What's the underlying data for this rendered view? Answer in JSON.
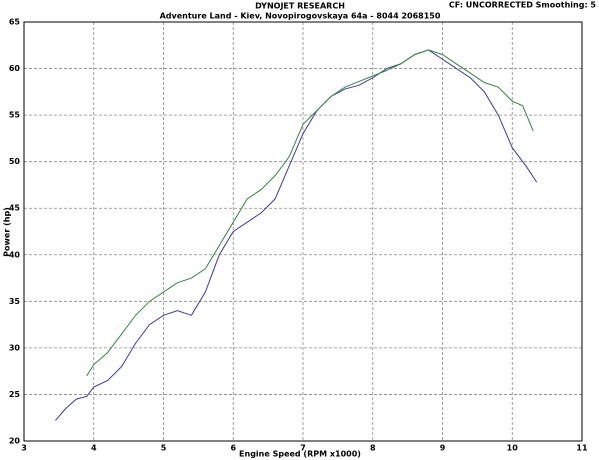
{
  "chart_data": {
    "type": "line",
    "title": "DYNOJET RESEARCH",
    "subtitle": "Adventure Land - Kiev, Novopirogovskaya 64a - 8044 2068150",
    "annotation": "CF: UNCORRECTED  Smoothing: 5",
    "xlabel": "Engine Speed (RPM x1000)",
    "ylabel": "Power (hp)",
    "xlim": [
      3,
      11
    ],
    "ylim": [
      20,
      65
    ],
    "xticks": [
      3,
      4,
      5,
      6,
      7,
      8,
      9,
      10,
      11
    ],
    "yticks": [
      20,
      25,
      30,
      35,
      40,
      45,
      50,
      55,
      60,
      65
    ],
    "grid": true,
    "series": [
      {
        "color": "#3a3aa8",
        "x": [
          3.45,
          3.6,
          3.75,
          3.9,
          4.0,
          4.2,
          4.4,
          4.6,
          4.8,
          5.0,
          5.2,
          5.4,
          5.6,
          5.8,
          6.0,
          6.2,
          6.4,
          6.6,
          6.8,
          7.0,
          7.2,
          7.4,
          7.6,
          7.8,
          8.0,
          8.2,
          8.4,
          8.6,
          8.8,
          9.0,
          9.2,
          9.4,
          9.6,
          9.8,
          10.0,
          10.2,
          10.35
        ],
        "values": [
          22.2,
          23.5,
          24.5,
          24.8,
          25.8,
          26.5,
          28,
          30.5,
          32.5,
          33.5,
          34,
          33.5,
          36,
          40,
          42.5,
          43.5,
          44.5,
          46,
          49.5,
          53,
          55.5,
          57,
          57.8,
          58.2,
          59,
          60,
          60.5,
          61.5,
          62,
          61,
          60,
          59,
          57.5,
          55,
          51.5,
          49.5,
          47.8
        ]
      },
      {
        "color": "#2f8a3c",
        "x": [
          3.9,
          4.0,
          4.2,
          4.4,
          4.6,
          4.8,
          5.0,
          5.2,
          5.4,
          5.6,
          5.8,
          6.0,
          6.2,
          6.4,
          6.6,
          6.8,
          7.0,
          7.2,
          7.4,
          7.6,
          7.8,
          8.0,
          8.2,
          8.4,
          8.6,
          8.8,
          9.0,
          9.2,
          9.4,
          9.6,
          9.8,
          10.0,
          10.15,
          10.3
        ],
        "values": [
          27,
          28.2,
          29.5,
          31.5,
          33.5,
          35,
          36,
          37,
          37.5,
          38.5,
          41,
          43.5,
          46,
          47,
          48.5,
          50.5,
          54,
          55.5,
          57,
          58,
          58.6,
          59.2,
          59.8,
          60.5,
          61.5,
          62,
          61.5,
          60.5,
          59.5,
          58.5,
          58,
          56.5,
          56,
          53.3
        ]
      }
    ]
  }
}
